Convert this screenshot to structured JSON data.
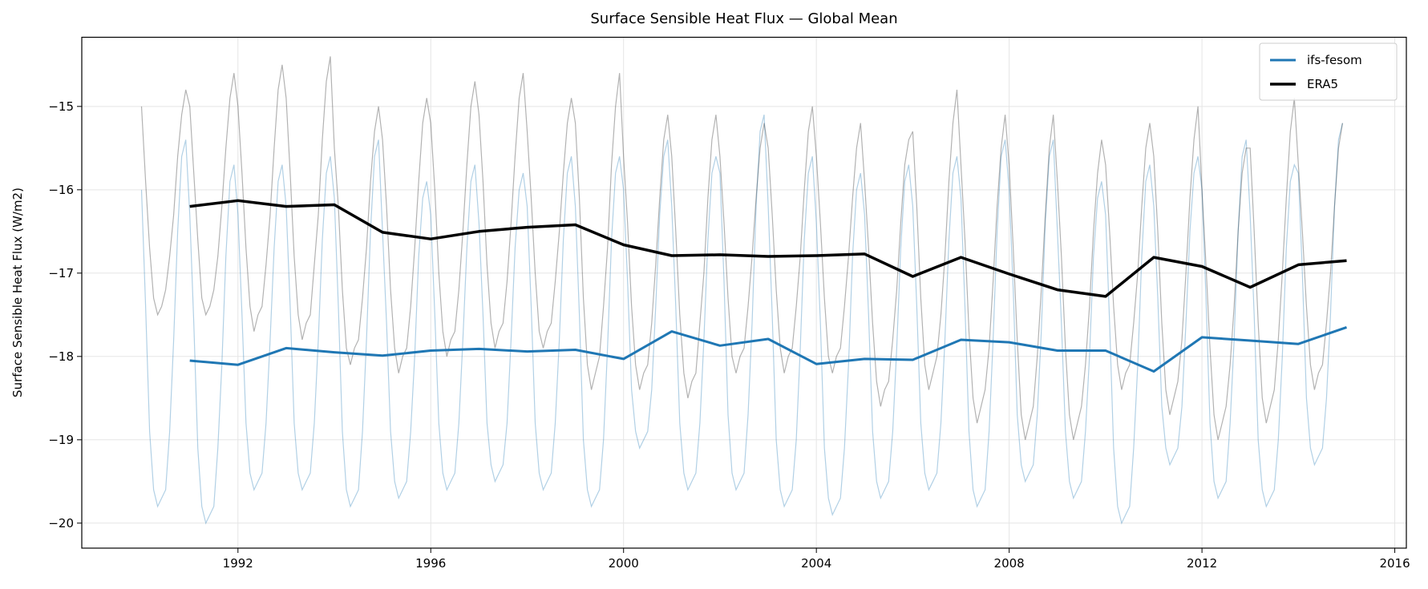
{
  "chart_data": {
    "type": "line",
    "title": "Surface Sensible Heat Flux — Global Mean",
    "xlabel": "",
    "ylabel": "Surface Sensible Heat Flux (W/m2)",
    "xlim": [
      1988.76,
      2016.24
    ],
    "ylim": [
      -20.3,
      -14.17
    ],
    "grid": true,
    "legend_position": "top-right",
    "x_ticks": [
      1992,
      1996,
      2000,
      2004,
      2008,
      2012,
      2016
    ],
    "x_tick_labels": [
      "1992",
      "1996",
      "2000",
      "2004",
      "2008",
      "2012",
      "2016"
    ],
    "y_ticks": [
      -15,
      -16,
      -17,
      -18,
      -19,
      -20
    ],
    "y_tick_labels": [
      "−15",
      "−16",
      "−17",
      "−18",
      "−19",
      "−20"
    ],
    "annual_years": [
      1991,
      1992,
      1993,
      1994,
      1995,
      1996,
      1997,
      1998,
      1999,
      2000,
      2001,
      2002,
      2003,
      2004,
      2005,
      2006,
      2007,
      2008,
      2009,
      2010,
      2011,
      2012,
      2013,
      2014,
      2015
    ],
    "series": [
      {
        "name": "ifs-fesom",
        "color": "#1f77b4",
        "annual": [
          -18.05,
          -18.1,
          -17.9,
          -17.95,
          -17.99,
          -17.93,
          -17.91,
          -17.94,
          -17.92,
          -18.03,
          -17.7,
          -17.87,
          -17.79,
          -18.09,
          -18.03,
          -18.04,
          -17.8,
          -17.83,
          -17.93,
          -17.93,
          -18.18,
          -17.77,
          -17.81,
          -17.85,
          -17.65
        ],
        "monthly": {
          "1990": [
            -16.0,
            -17.4,
            -18.9,
            -19.6,
            -19.8,
            -19.7,
            -19.6,
            -18.9,
            -17.8,
            -16.5,
            -15.6,
            -15.4
          ],
          "1991": [
            -16.3,
            -17.6,
            -19.1,
            -19.8,
            -20.0,
            -19.9,
            -19.8,
            -19.1,
            -18.1,
            -16.8,
            -15.9,
            -15.7
          ],
          "1992": [
            -16.3,
            -17.5,
            -18.8,
            -19.4,
            -19.6,
            -19.5,
            -19.4,
            -18.8,
            -17.8,
            -16.7,
            -15.9,
            -15.7
          ],
          "1993": [
            -16.2,
            -17.4,
            -18.8,
            -19.4,
            -19.6,
            -19.5,
            -19.4,
            -18.8,
            -17.8,
            -16.6,
            -15.8,
            -15.6
          ],
          "1994": [
            -16.1,
            -17.4,
            -18.9,
            -19.6,
            -19.8,
            -19.7,
            -19.6,
            -18.9,
            -17.8,
            -16.5,
            -15.6,
            -15.4
          ],
          "1995": [
            -16.5,
            -17.6,
            -18.9,
            -19.5,
            -19.7,
            -19.6,
            -19.5,
            -18.9,
            -18.0,
            -16.8,
            -16.1,
            -15.9
          ],
          "1996": [
            -16.3,
            -17.5,
            -18.8,
            -19.4,
            -19.6,
            -19.5,
            -19.4,
            -18.8,
            -17.8,
            -16.7,
            -15.9,
            -15.7
          ],
          "1997": [
            -16.4,
            -17.5,
            -18.8,
            -19.3,
            -19.5,
            -19.4,
            -19.3,
            -18.8,
            -17.8,
            -16.7,
            -16.0,
            -15.8
          ],
          "1998": [
            -16.2,
            -17.4,
            -18.8,
            -19.4,
            -19.6,
            -19.5,
            -19.4,
            -18.8,
            -17.8,
            -16.6,
            -15.8,
            -15.6
          ],
          "1999": [
            -16.2,
            -17.5,
            -19.0,
            -19.6,
            -19.8,
            -19.7,
            -19.6,
            -19.0,
            -17.9,
            -16.6,
            -15.8,
            -15.6
          ],
          "2000": [
            -16.0,
            -17.1,
            -18.4,
            -18.9,
            -19.1,
            -19.0,
            -18.9,
            -18.4,
            -17.4,
            -16.3,
            -15.6,
            -15.4
          ],
          "2001": [
            -16.2,
            -17.4,
            -18.8,
            -19.4,
            -19.6,
            -19.5,
            -19.4,
            -18.8,
            -17.8,
            -16.6,
            -15.8,
            -15.6
          ],
          "2002": [
            -15.8,
            -17.1,
            -18.7,
            -19.4,
            -19.6,
            -19.5,
            -19.4,
            -18.7,
            -17.6,
            -16.2,
            -15.3,
            -15.1
          ],
          "2003": [
            -16.2,
            -17.5,
            -19.0,
            -19.6,
            -19.8,
            -19.7,
            -19.6,
            -19.0,
            -17.9,
            -16.6,
            -15.8,
            -15.6
          ],
          "2004": [
            -16.4,
            -17.6,
            -19.1,
            -19.7,
            -19.9,
            -19.8,
            -19.7,
            -19.1,
            -18.1,
            -16.8,
            -16.0,
            -15.8
          ],
          "2005": [
            -16.3,
            -17.5,
            -18.9,
            -19.5,
            -19.7,
            -19.6,
            -19.5,
            -18.9,
            -17.9,
            -16.7,
            -15.9,
            -15.7
          ],
          "2006": [
            -16.2,
            -17.4,
            -18.8,
            -19.4,
            -19.6,
            -19.5,
            -19.4,
            -18.8,
            -17.8,
            -16.6,
            -15.8,
            -15.6
          ],
          "2007": [
            -16.1,
            -17.4,
            -18.9,
            -19.6,
            -19.8,
            -19.7,
            -19.6,
            -18.9,
            -17.8,
            -16.5,
            -15.6,
            -15.4
          ],
          "2008": [
            -16.0,
            -17.2,
            -18.7,
            -19.3,
            -19.5,
            -19.4,
            -19.3,
            -18.7,
            -17.7,
            -16.4,
            -15.6,
            -15.4
          ],
          "2009": [
            -16.5,
            -17.6,
            -18.9,
            -19.5,
            -19.7,
            -19.6,
            -19.5,
            -18.9,
            -18.0,
            -16.8,
            -16.1,
            -15.9
          ],
          "2010": [
            -16.3,
            -17.6,
            -19.1,
            -19.8,
            -20.0,
            -19.9,
            -19.8,
            -19.1,
            -18.1,
            -16.8,
            -15.9,
            -15.7
          ],
          "2011": [
            -16.2,
            -17.3,
            -18.6,
            -19.1,
            -19.3,
            -19.2,
            -19.1,
            -18.6,
            -17.6,
            -16.5,
            -15.8,
            -15.6
          ],
          "2012": [
            -16.0,
            -17.3,
            -18.8,
            -19.5,
            -19.7,
            -19.6,
            -19.5,
            -18.8,
            -17.8,
            -16.5,
            -15.6,
            -15.4
          ],
          "2013": [
            -16.3,
            -17.5,
            -19.0,
            -19.6,
            -19.8,
            -19.7,
            -19.6,
            -19.0,
            -18.0,
            -16.7,
            -15.9,
            -15.7
          ],
          "2014": [
            -15.8,
            -17.0,
            -18.5,
            -19.1,
            -19.3,
            -19.2,
            -19.1,
            -18.5,
            -17.5,
            -16.2,
            -15.4,
            -15.2
          ]
        }
      },
      {
        "name": "ERA5",
        "color": "#000000",
        "annual": [
          -16.2,
          -16.13,
          -16.2,
          -16.18,
          -16.51,
          -16.59,
          -16.5,
          -16.45,
          -16.42,
          -16.66,
          -16.79,
          -16.78,
          -16.8,
          -16.79,
          -16.77,
          -17.04,
          -16.81,
          -17.01,
          -17.2,
          -17.28,
          -16.81,
          -16.92,
          -17.17,
          -16.9,
          -16.85
        ],
        "monthly": {
          "1990": [
            -15.0,
            -15.9,
            -16.7,
            -17.3,
            -17.5,
            -17.4,
            -17.2,
            -16.8,
            -16.3,
            -15.6,
            -15.1,
            -14.8
          ],
          "1991": [
            -15.0,
            -15.8,
            -16.6,
            -17.3,
            -17.5,
            -17.4,
            -17.2,
            -16.8,
            -16.2,
            -15.5,
            -14.9,
            -14.6
          ],
          "1992": [
            -15.0,
            -15.8,
            -16.7,
            -17.4,
            -17.7,
            -17.5,
            -17.4,
            -16.9,
            -16.3,
            -15.5,
            -14.8,
            -14.5
          ],
          "1993": [
            -14.9,
            -15.8,
            -16.8,
            -17.5,
            -17.8,
            -17.6,
            -17.5,
            -16.9,
            -16.3,
            -15.4,
            -14.7,
            -14.4
          ],
          "1994": [
            -15.5,
            -16.2,
            -17.2,
            -17.9,
            -18.1,
            -17.9,
            -17.8,
            -17.3,
            -16.7,
            -15.9,
            -15.3,
            -15.0
          ],
          "1995": [
            -15.4,
            -16.2,
            -17.2,
            -17.9,
            -18.2,
            -18.0,
            -17.9,
            -17.4,
            -16.7,
            -15.9,
            -15.2,
            -14.9
          ],
          "1996": [
            -15.2,
            -16.0,
            -17.0,
            -17.7,
            -18.0,
            -17.8,
            -17.7,
            -17.2,
            -16.5,
            -15.7,
            -15.0,
            -14.7
          ],
          "1997": [
            -15.1,
            -15.9,
            -16.9,
            -17.6,
            -17.9,
            -17.7,
            -17.6,
            -17.1,
            -16.4,
            -15.6,
            -14.9,
            -14.6
          ],
          "1998": [
            -15.3,
            -16.1,
            -17.0,
            -17.7,
            -17.9,
            -17.7,
            -17.6,
            -17.1,
            -16.5,
            -15.8,
            -15.2,
            -14.9
          ],
          "1999": [
            -15.2,
            -16.1,
            -17.3,
            -18.1,
            -18.4,
            -18.2,
            -18.0,
            -17.4,
            -16.7,
            -15.7,
            -15.0,
            -14.6
          ],
          "2000": [
            -15.6,
            -16.4,
            -17.4,
            -18.1,
            -18.4,
            -18.2,
            -18.1,
            -17.6,
            -16.9,
            -16.1,
            -15.4,
            -15.1
          ],
          "2001": [
            -15.6,
            -16.5,
            -17.5,
            -18.2,
            -18.5,
            -18.3,
            -18.2,
            -17.6,
            -17.0,
            -16.1,
            -15.4,
            -15.1
          ],
          "2002": [
            -15.6,
            -16.4,
            -17.3,
            -18.0,
            -18.2,
            -18.0,
            -17.9,
            -17.4,
            -16.8,
            -16.1,
            -15.5,
            -15.2
          ],
          "2003": [
            -15.5,
            -16.3,
            -17.2,
            -17.9,
            -18.2,
            -18.0,
            -17.9,
            -17.4,
            -16.8,
            -16.0,
            -15.3,
            -15.0
          ],
          "2004": [
            -15.6,
            -16.4,
            -17.3,
            -18.0,
            -18.2,
            -18.0,
            -17.9,
            -17.4,
            -16.8,
            -16.1,
            -15.5,
            -15.2
          ],
          "2005": [
            -15.9,
            -16.7,
            -17.6,
            -18.3,
            -18.6,
            -18.4,
            -18.3,
            -17.8,
            -17.2,
            -16.4,
            -15.7,
            -15.4
          ],
          "2006": [
            -15.3,
            -16.2,
            -17.3,
            -18.1,
            -18.4,
            -18.2,
            -18.0,
            -17.5,
            -16.8,
            -15.9,
            -15.2,
            -14.8
          ],
          "2007": [
            -15.7,
            -16.6,
            -17.7,
            -18.5,
            -18.8,
            -18.6,
            -18.4,
            -17.9,
            -17.1,
            -16.2,
            -15.5,
            -15.1
          ],
          "2008": [
            -15.7,
            -16.7,
            -17.8,
            -18.7,
            -19.0,
            -18.8,
            -18.6,
            -18.0,
            -17.2,
            -16.3,
            -15.5,
            -15.1
          ],
          "2009": [
            -15.9,
            -16.8,
            -17.9,
            -18.7,
            -19.0,
            -18.8,
            -18.6,
            -18.1,
            -17.4,
            -16.5,
            -15.8,
            -15.4
          ],
          "2010": [
            -15.7,
            -16.5,
            -17.4,
            -18.1,
            -18.4,
            -18.2,
            -18.1,
            -17.6,
            -17.0,
            -16.2,
            -15.5,
            -15.2
          ],
          "2011": [
            -15.6,
            -16.5,
            -17.6,
            -18.4,
            -18.7,
            -18.5,
            -18.3,
            -17.8,
            -17.0,
            -16.1,
            -15.4,
            -15.0
          ],
          "2012": [
            -16.0,
            -16.9,
            -17.9,
            -18.7,
            -19.0,
            -18.8,
            -18.6,
            -18.1,
            -17.4,
            -16.5,
            -15.8,
            -15.5
          ],
          "2013": [
            -15.5,
            -16.5,
            -17.6,
            -18.5,
            -18.8,
            -18.6,
            -18.4,
            -17.8,
            -17.0,
            -16.1,
            -15.3,
            -14.9
          ],
          "2014": [
            -15.7,
            -16.5,
            -17.4,
            -18.1,
            -18.4,
            -18.2,
            -18.1,
            -17.6,
            -17.0,
            -16.2,
            -15.5,
            -15.2
          ]
        }
      }
    ]
  }
}
